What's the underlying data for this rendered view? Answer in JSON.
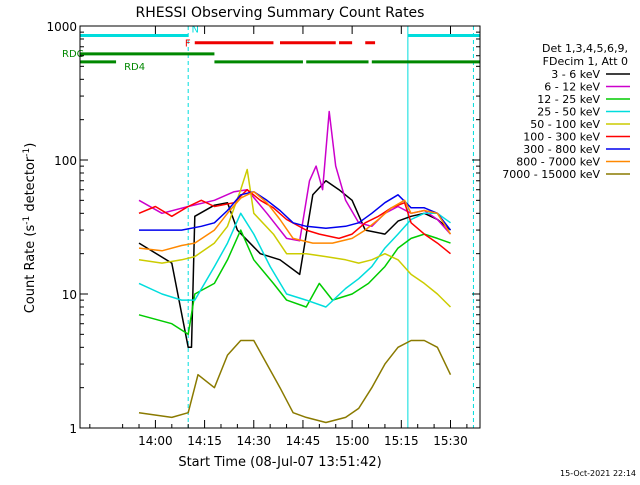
{
  "chart_data": {
    "type": "line",
    "title": "RHESSI Observing Summary Count Rates",
    "xlabel": "Start Time (08-Jul-07 13:51:42)",
    "ylabel_text": "Count Rate (s",
    "ylabel_sup": "-1",
    "ylabel_tail": " detector",
    "ylabel_close": ")",
    "footer": "15-Oct-2021 22:14",
    "x_range_minutes": [
      -23,
      99
    ],
    "y_scale": "log",
    "y_range": [
      1,
      1000
    ],
    "x_ticks": [
      {
        "t": 0,
        "label": "14:00"
      },
      {
        "t": 15,
        "label": "14:15"
      },
      {
        "t": 30,
        "label": "14:30"
      },
      {
        "t": 45,
        "label": "14:45"
      },
      {
        "t": 60,
        "label": "15:00"
      },
      {
        "t": 75,
        "label": "15:15"
      },
      {
        "t": 90,
        "label": "15:30"
      }
    ],
    "y_ticks": [
      {
        "v": 1,
        "label": "1"
      },
      {
        "v": 10,
        "label": "10"
      },
      {
        "v": 100,
        "label": "100"
      },
      {
        "v": 1000,
        "label": "1000"
      }
    ],
    "legend_header": [
      "Det 1,3,4,5,6,9,",
      "FDecim 1, Att 0"
    ],
    "legend_position": "right",
    "series": [
      {
        "name": "3 - 6 keV",
        "color": "#000000",
        "points": [
          [
            -5,
            24
          ],
          [
            5,
            17
          ],
          [
            10,
            4
          ],
          [
            11,
            4
          ],
          [
            12,
            38
          ],
          [
            18,
            46
          ],
          [
            22,
            48
          ],
          [
            25,
            30
          ],
          [
            32,
            20
          ],
          [
            38,
            18
          ],
          [
            44,
            14
          ],
          [
            48,
            55
          ],
          [
            52,
            70
          ],
          [
            56,
            60
          ],
          [
            60,
            50
          ],
          [
            64,
            30
          ],
          [
            70,
            28
          ],
          [
            74,
            35
          ],
          [
            78,
            38
          ],
          [
            82,
            40
          ],
          [
            86,
            36
          ],
          [
            90,
            30
          ]
        ]
      },
      {
        "name": "6 - 12 keV",
        "color": "#cc00cc",
        "points": [
          [
            -5,
            50
          ],
          [
            2,
            40
          ],
          [
            10,
            45
          ],
          [
            18,
            50
          ],
          [
            24,
            58
          ],
          [
            28,
            60
          ],
          [
            34,
            40
          ],
          [
            40,
            26
          ],
          [
            44,
            25
          ],
          [
            47,
            70
          ],
          [
            49,
            90
          ],
          [
            51,
            60
          ],
          [
            53,
            230
          ],
          [
            55,
            90
          ],
          [
            58,
            50
          ],
          [
            62,
            34
          ],
          [
            66,
            32
          ],
          [
            70,
            40
          ],
          [
            74,
            45
          ],
          [
            78,
            40
          ],
          [
            82,
            42
          ],
          [
            86,
            36
          ],
          [
            90,
            28
          ]
        ]
      },
      {
        "name": "12 - 25 keV",
        "color": "#00cc00",
        "points": [
          [
            -5,
            7
          ],
          [
            5,
            6
          ],
          [
            10,
            5
          ],
          [
            12,
            10
          ],
          [
            18,
            12
          ],
          [
            22,
            18
          ],
          [
            26,
            30
          ],
          [
            30,
            18
          ],
          [
            36,
            12
          ],
          [
            40,
            9
          ],
          [
            46,
            8
          ],
          [
            50,
            12
          ],
          [
            54,
            9
          ],
          [
            60,
            10
          ],
          [
            65,
            12
          ],
          [
            70,
            16
          ],
          [
            74,
            22
          ],
          [
            78,
            26
          ],
          [
            82,
            28
          ],
          [
            86,
            26
          ],
          [
            90,
            24
          ]
        ]
      },
      {
        "name": "25 - 50 keV",
        "color": "#00dddd",
        "points": [
          [
            -5,
            12
          ],
          [
            2,
            10
          ],
          [
            8,
            9
          ],
          [
            12,
            9
          ],
          [
            18,
            16
          ],
          [
            22,
            24
          ],
          [
            26,
            40
          ],
          [
            30,
            28
          ],
          [
            35,
            16
          ],
          [
            40,
            10
          ],
          [
            46,
            9
          ],
          [
            52,
            8
          ],
          [
            58,
            11
          ],
          [
            62,
            13
          ],
          [
            66,
            16
          ],
          [
            70,
            22
          ],
          [
            74,
            28
          ],
          [
            78,
            36
          ],
          [
            82,
            40
          ],
          [
            86,
            40
          ],
          [
            90,
            34
          ]
        ]
      },
      {
        "name": "50 - 100 keV",
        "color": "#cccc00",
        "points": [
          [
            -5,
            18
          ],
          [
            2,
            17
          ],
          [
            8,
            18
          ],
          [
            12,
            19
          ],
          [
            18,
            24
          ],
          [
            22,
            32
          ],
          [
            26,
            60
          ],
          [
            28,
            85
          ],
          [
            30,
            40
          ],
          [
            36,
            28
          ],
          [
            40,
            20
          ],
          [
            46,
            20
          ],
          [
            52,
            19
          ],
          [
            58,
            18
          ],
          [
            62,
            17
          ],
          [
            66,
            18
          ],
          [
            70,
            20
          ],
          [
            74,
            18
          ],
          [
            78,
            14
          ],
          [
            82,
            12
          ],
          [
            86,
            10
          ],
          [
            90,
            8
          ]
        ]
      },
      {
        "name": "100 - 300 keV",
        "color": "#ff0000",
        "points": [
          [
            -5,
            40
          ],
          [
            0,
            45
          ],
          [
            5,
            38
          ],
          [
            10,
            45
          ],
          [
            14,
            50
          ],
          [
            18,
            45
          ],
          [
            24,
            48
          ],
          [
            28,
            60
          ],
          [
            32,
            50
          ],
          [
            36,
            44
          ],
          [
            40,
            36
          ],
          [
            46,
            30
          ],
          [
            50,
            28
          ],
          [
            56,
            26
          ],
          [
            60,
            28
          ],
          [
            64,
            34
          ],
          [
            68,
            38
          ],
          [
            72,
            44
          ],
          [
            76,
            48
          ],
          [
            78,
            34
          ],
          [
            82,
            28
          ],
          [
            86,
            24
          ],
          [
            90,
            20
          ]
        ]
      },
      {
        "name": "300 - 800 keV",
        "color": "#0000ee",
        "points": [
          [
            -5,
            30
          ],
          [
            2,
            30
          ],
          [
            8,
            30
          ],
          [
            14,
            32
          ],
          [
            18,
            34
          ],
          [
            22,
            42
          ],
          [
            26,
            55
          ],
          [
            30,
            58
          ],
          [
            34,
            50
          ],
          [
            38,
            42
          ],
          [
            42,
            34
          ],
          [
            46,
            32
          ],
          [
            52,
            31
          ],
          [
            58,
            32
          ],
          [
            62,
            34
          ],
          [
            66,
            40
          ],
          [
            70,
            48
          ],
          [
            74,
            55
          ],
          [
            78,
            44
          ],
          [
            82,
            44
          ],
          [
            86,
            40
          ],
          [
            90,
            30
          ]
        ]
      },
      {
        "name": "800 - 7000 keV",
        "color": "#ff8800",
        "points": [
          [
            -5,
            22
          ],
          [
            2,
            21
          ],
          [
            8,
            23
          ],
          [
            12,
            24
          ],
          [
            18,
            30
          ],
          [
            22,
            40
          ],
          [
            26,
            52
          ],
          [
            30,
            58
          ],
          [
            34,
            48
          ],
          [
            38,
            36
          ],
          [
            42,
            26
          ],
          [
            48,
            24
          ],
          [
            54,
            24
          ],
          [
            60,
            26
          ],
          [
            64,
            30
          ],
          [
            68,
            36
          ],
          [
            72,
            44
          ],
          [
            76,
            50
          ],
          [
            78,
            40
          ],
          [
            82,
            42
          ],
          [
            86,
            40
          ],
          [
            90,
            28
          ]
        ]
      },
      {
        "name": "7000 - 15000 keV",
        "color": "#8a7a00",
        "points": [
          [
            -5,
            1.3
          ],
          [
            5,
            1.2
          ],
          [
            10,
            1.3
          ],
          [
            13,
            2.5
          ],
          [
            18,
            2.0
          ],
          [
            22,
            3.5
          ],
          [
            26,
            4.5
          ],
          [
            30,
            4.5
          ],
          [
            34,
            3
          ],
          [
            38,
            2
          ],
          [
            42,
            1.3
          ],
          [
            46,
            1.2
          ],
          [
            52,
            1.1
          ],
          [
            58,
            1.2
          ],
          [
            62,
            1.4
          ],
          [
            66,
            2
          ],
          [
            70,
            3
          ],
          [
            74,
            4
          ],
          [
            78,
            4.5
          ],
          [
            82,
            4.5
          ],
          [
            86,
            4
          ],
          [
            90,
            2.5
          ]
        ]
      }
    ],
    "status_bars": [
      {
        "name": "N",
        "color": "#00dddd",
        "level": 850,
        "segments": [
          [
            -23,
            10
          ],
          [
            77,
            99
          ]
        ]
      },
      {
        "name": "F",
        "color": "#ee0000",
        "level": 750,
        "segments": [
          [
            12,
            36
          ],
          [
            38,
            55
          ],
          [
            56,
            60
          ],
          [
            64,
            67
          ]
        ]
      },
      {
        "name": "RDC",
        "color": "#008800",
        "level": 620,
        "segments": [
          [
            -23,
            18
          ]
        ]
      },
      {
        "name": "RD4",
        "color": "#008800",
        "level": 540,
        "segments": [
          [
            -23,
            -12
          ],
          [
            18,
            45
          ],
          [
            46,
            65
          ],
          [
            66,
            99
          ]
        ]
      }
    ],
    "vlines": [
      {
        "t": -23,
        "color": "#00dddd",
        "dashed": false
      },
      {
        "t": 10,
        "color": "#00dddd",
        "dashed": true
      },
      {
        "t": 77,
        "color": "#00dddd",
        "dashed": false
      },
      {
        "t": 97,
        "color": "#00dddd",
        "dashed": true
      }
    ]
  }
}
